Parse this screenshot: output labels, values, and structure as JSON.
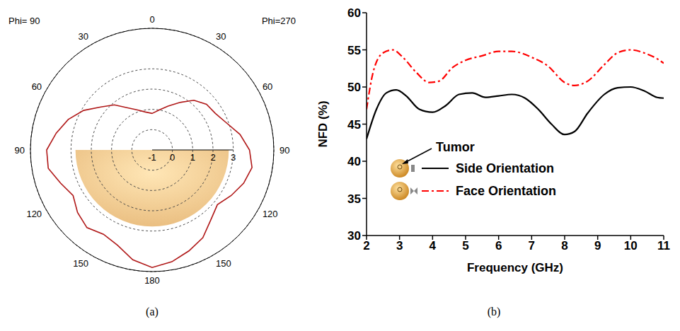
{
  "chart_data": [
    {
      "type": "polar",
      "caption": "(a)",
      "annotations": [
        "Phi= 90",
        "Phi=270"
      ],
      "categories": [
        "0",
        null,
        null,
        "30",
        null,
        null,
        "60",
        null,
        null,
        "90",
        null,
        null,
        "120",
        null,
        null,
        "150",
        null,
        null,
        "180",
        null,
        null,
        "150",
        null,
        null,
        "120",
        null,
        null,
        "90",
        null,
        null,
        "60",
        null,
        null,
        "30",
        null,
        null
      ],
      "values": [
        0.8,
        1.0,
        1.3,
        1.7,
        2.2,
        2.5,
        2.6,
        2.9,
        3.4,
        3.8,
        4.0,
        3.8,
        3.5,
        3.2,
        3.5,
        4.0,
        4.3,
        4.6,
        4.8,
        4.5,
        4.0,
        3.8,
        4.0,
        3.8,
        3.5,
        3.8,
        4.2,
        4.2,
        3.8,
        3.4,
        2.9,
        2.3,
        1.9,
        1.4,
        1.1,
        0.9
      ],
      "color": "#b01818",
      "rlim": [
        -1,
        5
      ],
      "rticks": [
        -1,
        0,
        1,
        2,
        3
      ],
      "grid": true
    },
    {
      "type": "line",
      "caption": "(b)",
      "x_label": "Frequency (GHz)",
      "y_label": "NFD (%)",
      "xlim": [
        2,
        11
      ],
      "xticks": [
        2,
        3,
        4,
        5,
        6,
        7,
        8,
        9,
        10,
        11
      ],
      "ylim": [
        30,
        60
      ],
      "yticks": [
        30,
        35,
        40,
        45,
        50,
        55,
        60
      ],
      "annotations": [
        "Tumor"
      ],
      "legend": "lower left",
      "grid": false,
      "series": [
        {
          "name": "Side Orientation",
          "color": "#000000",
          "line_style": "solid",
          "x": [
            2,
            2.3,
            2.6,
            2.9,
            3.2,
            3.6,
            4,
            4.4,
            4.8,
            5.2,
            5.6,
            6,
            6.4,
            6.8,
            7.2,
            7.6,
            8,
            8.3,
            8.7,
            9.2,
            9.6,
            10,
            10.4,
            10.8,
            11
          ],
          "values": [
            43,
            47,
            49.2,
            49.6,
            48.8,
            47,
            46.6,
            47.5,
            49,
            49.2,
            48.6,
            48.8,
            49,
            48.5,
            47,
            45,
            43.6,
            44,
            46.5,
            49,
            49.9,
            50,
            49.5,
            48.6,
            48.5
          ]
        },
        {
          "name": "Face Orientation",
          "color": "#ff0000",
          "line_style": "dashdot",
          "x": [
            2,
            2.2,
            2.5,
            2.8,
            3.1,
            3.5,
            3.9,
            4.2,
            4.6,
            5,
            5.5,
            6,
            6.4,
            7,
            7.5,
            8,
            8.3,
            8.7,
            9.2,
            9.6,
            10,
            10.4,
            10.8,
            11
          ],
          "values": [
            47,
            52,
            54.6,
            55,
            54,
            52,
            50.6,
            50.8,
            52.6,
            53.6,
            54.2,
            54.8,
            54.8,
            54,
            52.8,
            50.6,
            50.2,
            50.8,
            53,
            54.6,
            55,
            54.6,
            53.8,
            53.2
          ]
        }
      ]
    }
  ]
}
